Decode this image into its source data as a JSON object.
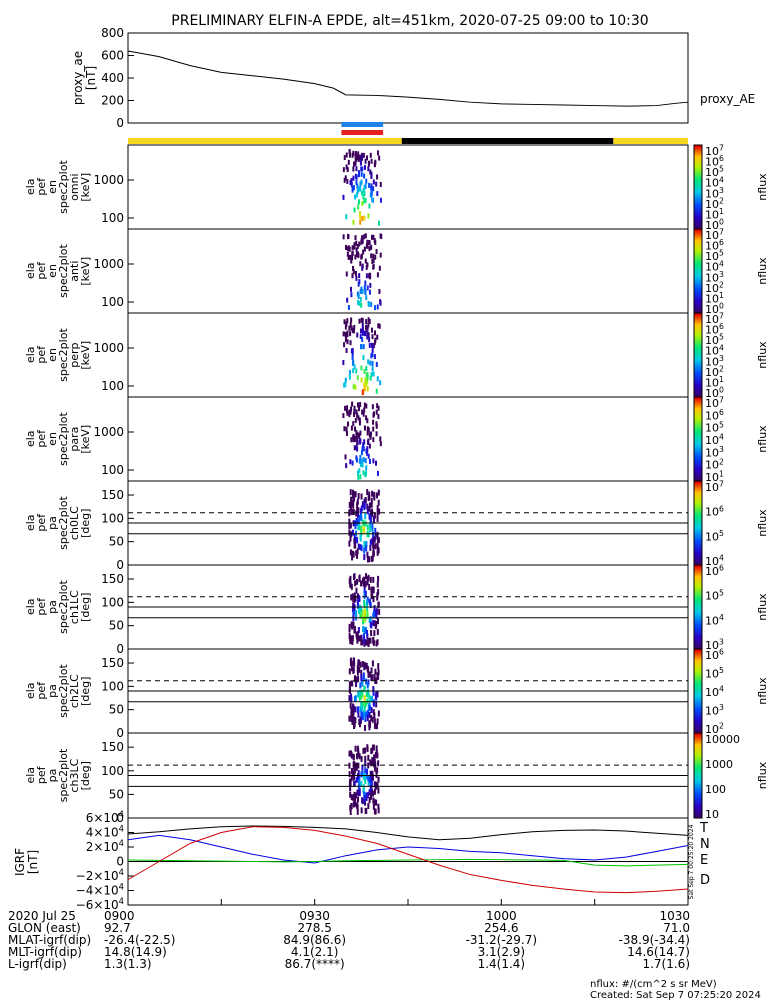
{
  "title": "PRELIMINARY ELFIN-A EPDE, alt=451km, 2020-07-25 09:00 to 10:30",
  "colors": {
    "region_yellow": "#f7d720",
    "region_black": "#000000",
    "bar_blue": "#1e82e6",
    "bar_red": "#e61e1e",
    "trace_T": "#000000",
    "trace_N": "#0000e0",
    "trace_E": "#00c000",
    "trace_D": "#d00000"
  },
  "chart_data": [
    {
      "type": "line",
      "name": "proxy_ae",
      "ylabel": [
        "proxy_ae",
        "[nT]"
      ],
      "series_label": "proxy_AE",
      "ylim": [
        0,
        800
      ],
      "yticks": [
        "800",
        "600",
        "400",
        "200",
        "0"
      ],
      "x_minutes": [
        0,
        5,
        10,
        15,
        20,
        25,
        30,
        33,
        35,
        40,
        45,
        50,
        55,
        60,
        65,
        70,
        75,
        80,
        85,
        88,
        90
      ],
      "values": [
        640,
        590,
        510,
        450,
        420,
        390,
        350,
        310,
        250,
        245,
        230,
        210,
        185,
        170,
        165,
        160,
        155,
        150,
        155,
        175,
        185
      ]
    },
    {
      "type": "heatmap",
      "name": "ela_pef_en_spec2plot_omni",
      "ylabel": [
        "ela",
        "pef",
        "en",
        "spec2plot",
        "omni",
        "[keV]"
      ],
      "scale": "log",
      "yticks": [
        "1000",
        "100"
      ],
      "cbar_ticks": [
        "10^7",
        "10^6",
        "10^5",
        "10^4",
        "10^3",
        "10^2",
        "10^1",
        "10^0"
      ],
      "cbar_label": "nflux"
    },
    {
      "type": "heatmap",
      "name": "ela_pef_en_spec2plot_anti",
      "ylabel": [
        "ela",
        "pef",
        "en",
        "spec2plot",
        "anti",
        "[keV]"
      ],
      "scale": "log",
      "yticks": [
        "1000",
        "100"
      ],
      "cbar_ticks": [
        "10^7",
        "10^6",
        "10^5",
        "10^4",
        "10^3",
        "10^2",
        "10^1",
        "10^0"
      ],
      "cbar_label": "nflux"
    },
    {
      "type": "heatmap",
      "name": "ela_pef_en_spec2plot_perp",
      "ylabel": [
        "ela",
        "pef",
        "en",
        "spec2plot",
        "perp",
        "[keV]"
      ],
      "scale": "log",
      "yticks": [
        "1000",
        "100"
      ],
      "cbar_ticks": [
        "10^7",
        "10^6",
        "10^5",
        "10^4",
        "10^3",
        "10^2",
        "10^1",
        "10^0"
      ],
      "cbar_label": "nflux"
    },
    {
      "type": "heatmap",
      "name": "ela_pef_en_spec2plot_para",
      "ylabel": [
        "ela",
        "pef",
        "en",
        "spec2plot",
        "para",
        "[keV]"
      ],
      "scale": "log",
      "yticks": [
        "1000",
        "100"
      ],
      "cbar_ticks": [
        "10^7",
        "10^6",
        "10^5",
        "10^4",
        "10^3",
        "10^2",
        "10^1"
      ],
      "cbar_label": "nflux"
    },
    {
      "type": "heatmap",
      "name": "ela_pef_pa_spec2plot_ch0LC",
      "ylabel": [
        "ela",
        "pef",
        "pa",
        "spec2plot",
        "ch0LC",
        "[deg]"
      ],
      "ylim": [
        0,
        180
      ],
      "yticks": [
        "150",
        "100",
        "50",
        "0"
      ],
      "cbar_ticks": [
        "10^7",
        "10^6",
        "10^5",
        "10^4"
      ],
      "cbar_label": "nflux"
    },
    {
      "type": "heatmap",
      "name": "ela_pef_pa_spec2plot_ch1LC",
      "ylabel": [
        "ela",
        "pef",
        "pa",
        "spec2plot",
        "ch1LC",
        "[deg]"
      ],
      "ylim": [
        0,
        180
      ],
      "yticks": [
        "150",
        "100",
        "50",
        "0"
      ],
      "cbar_ticks": [
        "10^6",
        "10^5",
        "10^4",
        "10^3"
      ],
      "cbar_label": "nflux"
    },
    {
      "type": "heatmap",
      "name": "ela_pef_pa_spec2plot_ch2LC",
      "ylabel": [
        "ela",
        "pef",
        "pa",
        "spec2plot",
        "ch2LC",
        "[deg]"
      ],
      "ylim": [
        0,
        180
      ],
      "yticks": [
        "150",
        "100",
        "50",
        "0"
      ],
      "cbar_ticks": [
        "10^6",
        "10^5",
        "10^4",
        "10^3",
        "10^2"
      ],
      "cbar_label": "nflux"
    },
    {
      "type": "heatmap",
      "name": "ela_pef_pa_spec2plot_ch3LC",
      "ylabel": [
        "ela",
        "pef",
        "pa",
        "spec2plot",
        "ch3LC",
        "[deg]"
      ],
      "ylim": [
        0,
        180
      ],
      "yticks": [
        "150",
        "100",
        "50",
        "0"
      ],
      "cbar_ticks": [
        "10000",
        "1000",
        "100",
        "10"
      ],
      "cbar_label": "nflux"
    },
    {
      "type": "line",
      "name": "IGRF",
      "ylabel": [
        "IGRF",
        "[nT]"
      ],
      "ylim": [
        -60000,
        60000
      ],
      "yticks": [
        "6×10^4",
        "4×10^4",
        "2×10^4",
        "0",
        "−2×10^4",
        "−4×10^4",
        "−6×10^4"
      ],
      "x_minutes": [
        0,
        5,
        10,
        15,
        20,
        25,
        30,
        35,
        40,
        45,
        50,
        55,
        60,
        65,
        70,
        75,
        80,
        85,
        90
      ],
      "series": [
        {
          "name": "T",
          "values": [
            38000,
            41000,
            45000,
            48000,
            49000,
            48500,
            47000,
            45000,
            40000,
            34000,
            30000,
            32000,
            37000,
            41000,
            43000,
            43500,
            42000,
            39000,
            36000
          ]
        },
        {
          "name": "N",
          "values": [
            30000,
            36000,
            30000,
            20000,
            10000,
            2000,
            -2000,
            8000,
            16000,
            20000,
            18000,
            14000,
            12000,
            8000,
            4000,
            2000,
            6000,
            14000,
            22000
          ]
        },
        {
          "name": "E",
          "values": [
            2000,
            1500,
            1000,
            500,
            0,
            -500,
            0,
            1000,
            1500,
            2000,
            2500,
            3000,
            2500,
            2000,
            1500,
            -5000,
            -6000,
            -5000,
            -4000
          ]
        },
        {
          "name": "D",
          "values": [
            -25000,
            0,
            25000,
            40000,
            48000,
            47000,
            43000,
            35000,
            25000,
            10000,
            -5000,
            -18000,
            -26000,
            -33000,
            -38000,
            -42000,
            -43000,
            -41000,
            -38000
          ]
        }
      ],
      "side_text": "Sat Sep 7 00:25:20 2024"
    }
  ],
  "xaxis": {
    "tick_labels": [
      "0900",
      "0930",
      "1000",
      "1030"
    ],
    "rows": [
      {
        "label": "2020 Jul 25",
        "values": [
          "0900",
          "0930",
          "1000",
          "1030"
        ]
      },
      {
        "label": "GLON (east)",
        "values": [
          "92.7",
          "278.5",
          "254.6",
          "71.0"
        ]
      },
      {
        "label": "MLAT-igrf(dip)",
        "values": [
          "-26.4(-22.5)",
          "84.9(86.6)",
          "-31.2(-29.7)",
          "-38.9(-34.4)"
        ]
      },
      {
        "label": "MLT-igrf(dip)",
        "values": [
          "14.8(14.9)",
          "4.1(2.1)",
          "3.1(2.9)",
          "14.6(14.7)"
        ]
      },
      {
        "label": "L-igrf(dip)",
        "values": [
          "1.3(1.3)",
          "86.7(****)",
          "1.4(1.4)",
          "1.7(1.6)"
        ]
      }
    ]
  },
  "footer": {
    "units": "nflux: #/(cm^2 s sr MeV)",
    "created": "Created: Sat Sep  7 07:25:20 2024"
  }
}
